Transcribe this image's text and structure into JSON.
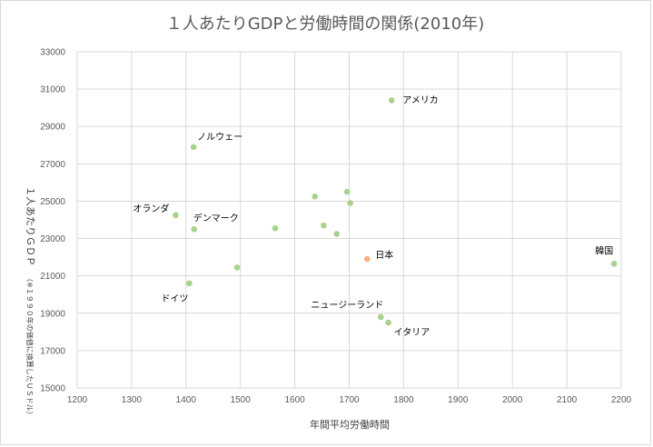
{
  "chart_data": {
    "type": "scatter",
    "title": "１人あたりGDPと労働時間の関係(2010年)",
    "xlabel": "年間平均労働時間",
    "ylabel_main": "１人あたりＧＤＰ",
    "ylabel_note": "（※１９９０年の価値に換算したＵＳドル）",
    "xlim": [
      1200,
      2200
    ],
    "ylim": [
      15000,
      33000
    ],
    "x_ticks": [
      "1200",
      "1300",
      "1400",
      "1500",
      "1600",
      "1700",
      "1800",
      "1900",
      "2000",
      "2100",
      "2200"
    ],
    "y_ticks": [
      "15000",
      "17000",
      "19000",
      "21000",
      "23000",
      "25000",
      "27000",
      "29000",
      "31000",
      "33000"
    ],
    "grid": true,
    "colors": {
      "default": "#a9d18e",
      "highlight": "#f4b183"
    },
    "points": [
      {
        "x": 1778,
        "y": 30400,
        "label": "アメリカ",
        "highlight": false
      },
      {
        "x": 1414,
        "y": 27900,
        "label": "ノルウェー",
        "highlight": false
      },
      {
        "x": 1381,
        "y": 24250,
        "label": "オランダ",
        "highlight": false
      },
      {
        "x": 1415,
        "y": 23500,
        "label": "デンマーク",
        "highlight": false
      },
      {
        "x": 1406,
        "y": 20600,
        "label": "ドイツ",
        "highlight": false
      },
      {
        "x": 1733,
        "y": 21900,
        "label": "日本",
        "highlight": true
      },
      {
        "x": 2187,
        "y": 21650,
        "label": "韓国",
        "highlight": false
      },
      {
        "x": 1758,
        "y": 18800,
        "label": "ニュージーランド",
        "highlight": false
      },
      {
        "x": 1772,
        "y": 18500,
        "label": "イタリア",
        "highlight": false
      },
      {
        "x": 1494,
        "y": 21450,
        "label": "",
        "highlight": false
      },
      {
        "x": 1564,
        "y": 23550,
        "label": "",
        "highlight": false
      },
      {
        "x": 1637,
        "y": 25250,
        "label": "",
        "highlight": false
      },
      {
        "x": 1696,
        "y": 25500,
        "label": "",
        "highlight": false
      },
      {
        "x": 1702,
        "y": 24900,
        "label": "",
        "highlight": false
      },
      {
        "x": 1653,
        "y": 23700,
        "label": "",
        "highlight": false
      },
      {
        "x": 1677,
        "y": 23250,
        "label": "",
        "highlight": false
      }
    ]
  }
}
